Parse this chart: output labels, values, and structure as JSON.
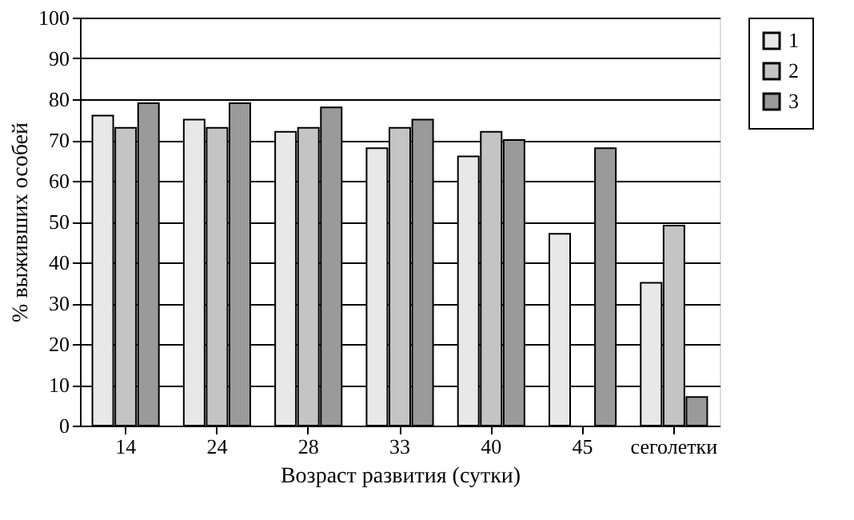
{
  "chart_data": {
    "type": "bar",
    "xlabel": "Возраст развития (сутки)",
    "ylabel": "% выживших особей",
    "categories": [
      "14",
      "24",
      "28",
      "33",
      "40",
      "45",
      "сеголетки"
    ],
    "series": [
      {
        "name": "1",
        "color": "#e8e8e8",
        "values": [
          76,
          75,
          72,
          68,
          66,
          47,
          35
        ]
      },
      {
        "name": "2",
        "color": "#c4c4c4",
        "values": [
          73,
          73,
          73,
          73,
          72,
          null,
          49
        ]
      },
      {
        "name": "3",
        "color": "#9a9a9a",
        "values": [
          79,
          79,
          78,
          75,
          70,
          68,
          7
        ]
      }
    ],
    "ylim": [
      0,
      100
    ],
    "yticks": [
      0,
      10,
      20,
      30,
      40,
      50,
      60,
      70,
      80,
      90,
      100
    ],
    "grid": "y",
    "legend": "right"
  }
}
